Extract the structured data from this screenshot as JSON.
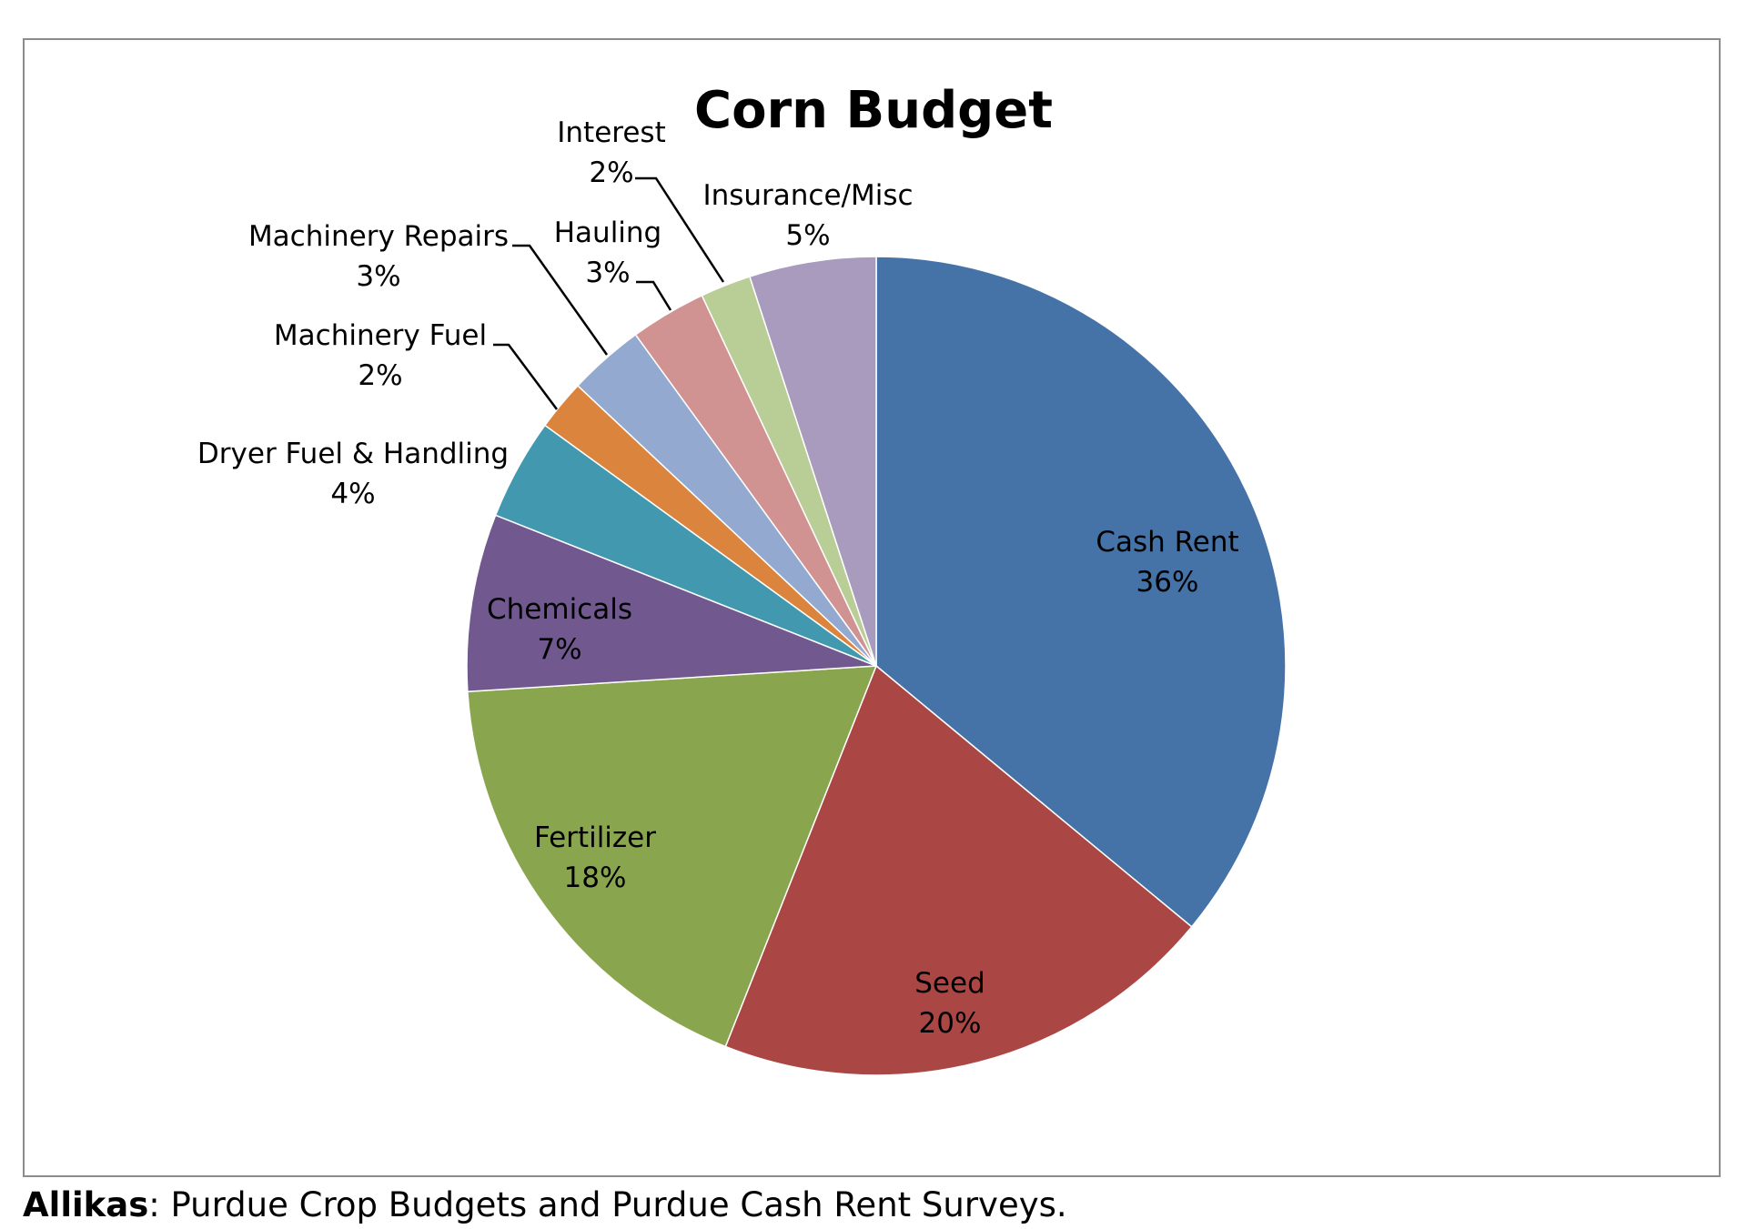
{
  "chart_data": {
    "type": "pie",
    "title": "Corn Budget",
    "start_angle_deg": 0,
    "direction": "clockwise",
    "slices": [
      {
        "label": "Cash Rent",
        "value": 36,
        "display": "36%",
        "color": "#4573a7",
        "label_placement": "inside"
      },
      {
        "label": "Seed",
        "value": 20,
        "display": "20%",
        "color": "#aa4644",
        "label_placement": "inside"
      },
      {
        "label": "Fertilizer",
        "value": 18,
        "display": "18%",
        "color": "#89a54e",
        "label_placement": "inside"
      },
      {
        "label": "Chemicals",
        "value": 7,
        "display": "7%",
        "color": "#71588f",
        "label_placement": "inside"
      },
      {
        "label": "Dryer Fuel & Handling",
        "value": 4,
        "display": "4%",
        "color": "#4298af",
        "label_placement": "outside"
      },
      {
        "label": "Machinery Fuel",
        "value": 2,
        "display": "2%",
        "color": "#db843d",
        "label_placement": "outside"
      },
      {
        "label": "Machinery Repairs",
        "value": 3,
        "display": "3%",
        "color": "#93a9cf",
        "label_placement": "outside"
      },
      {
        "label": "Hauling",
        "value": 3,
        "display": "3%",
        "color": "#d19392",
        "label_placement": "outside"
      },
      {
        "label": "Interest",
        "value": 2,
        "display": "2%",
        "color": "#b9cd96",
        "label_placement": "outside"
      },
      {
        "label": "Insurance/Misc",
        "value": 5,
        "display": "5%",
        "color": "#a99bbd",
        "label_placement": "outside"
      }
    ]
  },
  "source": {
    "author": "Allikas",
    "separator": ":",
    "text": " Purdue Crop Budgets and Purdue Cash Rent Surveys."
  }
}
